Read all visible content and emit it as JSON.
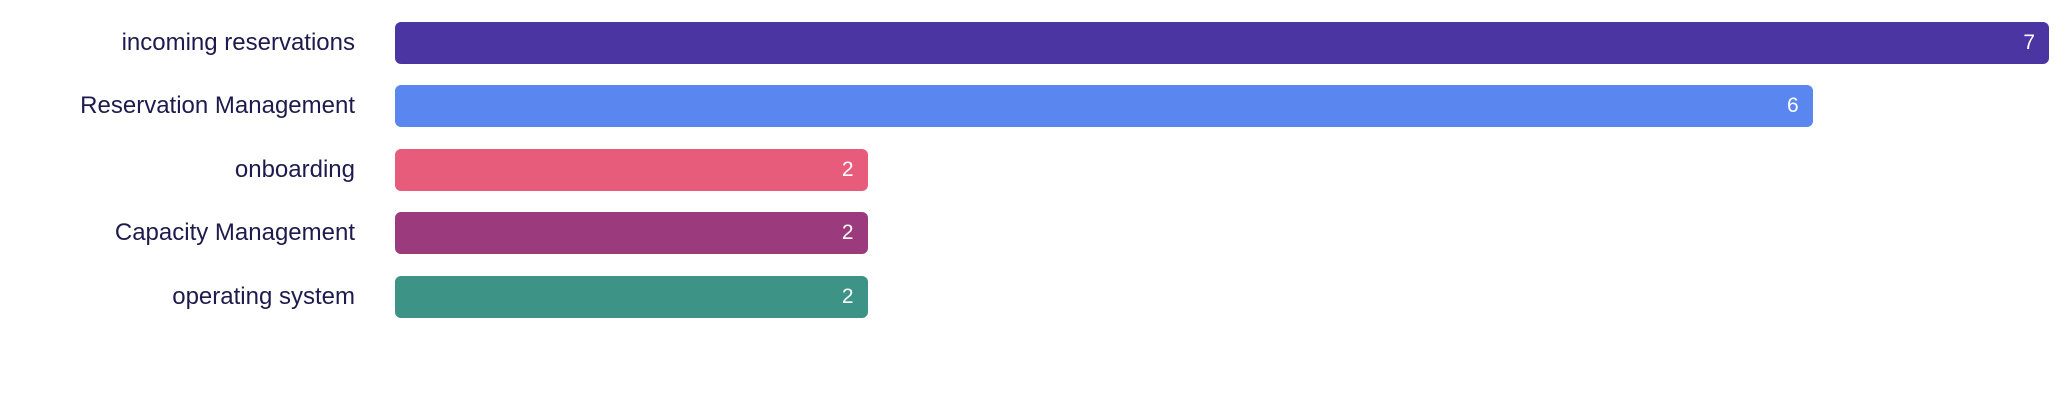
{
  "chart_data": {
    "type": "bar",
    "orientation": "horizontal",
    "categories": [
      "incoming reservations",
      "Reservation Management",
      "onboarding",
      "Capacity Management",
      "operating system"
    ],
    "values": [
      7,
      6,
      2,
      2,
      2
    ],
    "colors": [
      "#4a35a3",
      "#5a86ef",
      "#e85c7b",
      "#9c3a7e",
      "#3e9387"
    ],
    "xlim": [
      0,
      7
    ],
    "grid": false,
    "data_labels": true
  }
}
